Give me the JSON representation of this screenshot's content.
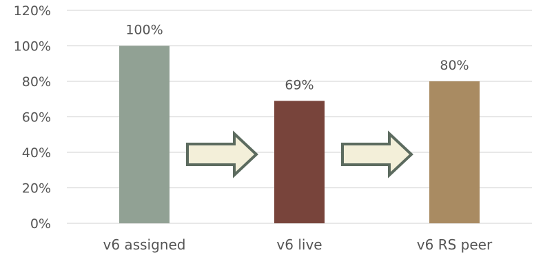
{
  "chart_data": {
    "type": "bar",
    "title": "",
    "xlabel": "",
    "ylabel": "",
    "categories": [
      "v6 assigned",
      "v6 live",
      "v6 RS peer"
    ],
    "values": [
      100,
      69,
      80
    ],
    "value_labels": [
      "100%",
      "69%",
      "80%"
    ],
    "colors": [
      "#91a194",
      "#78443b",
      "#a98b62"
    ],
    "ylim": [
      0,
      120
    ],
    "yticks": [
      0,
      20,
      40,
      60,
      80,
      100,
      120
    ],
    "ytick_labels": [
      "0%",
      "20%",
      "40%",
      "60%",
      "80%",
      "100%",
      "120%"
    ],
    "grid": true,
    "legend": "none",
    "arrows": {
      "count": 2,
      "fill": "#f3efd9",
      "stroke": "#5c6b5f"
    }
  }
}
